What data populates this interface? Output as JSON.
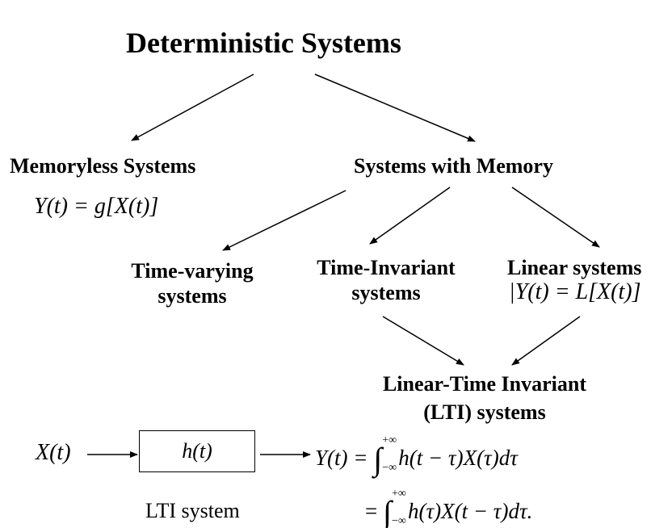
{
  "title": "Deterministic Systems",
  "nodes": {
    "memoryless": {
      "label": "Memoryless Systems",
      "formula": "Y(t) = g[X(t)]"
    },
    "with_memory": {
      "label": "Systems with Memory"
    },
    "time_varying": {
      "line1": "Time-varying",
      "line2": "systems"
    },
    "time_invariant": {
      "line1": "Time-Invariant",
      "line2": "systems"
    },
    "linear": {
      "line1": "Linear systems",
      "formula": "|Y(t) = L[X(t)]"
    },
    "lti": {
      "line1": "Linear-Time Invariant",
      "line2": "(LTI) systems"
    }
  },
  "block": {
    "input": "X(t)",
    "impulse_response": "h(t)",
    "caption": "LTI system",
    "output_lhs": "Y(t) =",
    "integral_upper": "+∞",
    "integral_lower": "−∞",
    "conv1": "h(t − τ)X(τ)dτ",
    "eq2_lhs": "=",
    "conv2": "h(τ)X(t − τ)dτ."
  }
}
